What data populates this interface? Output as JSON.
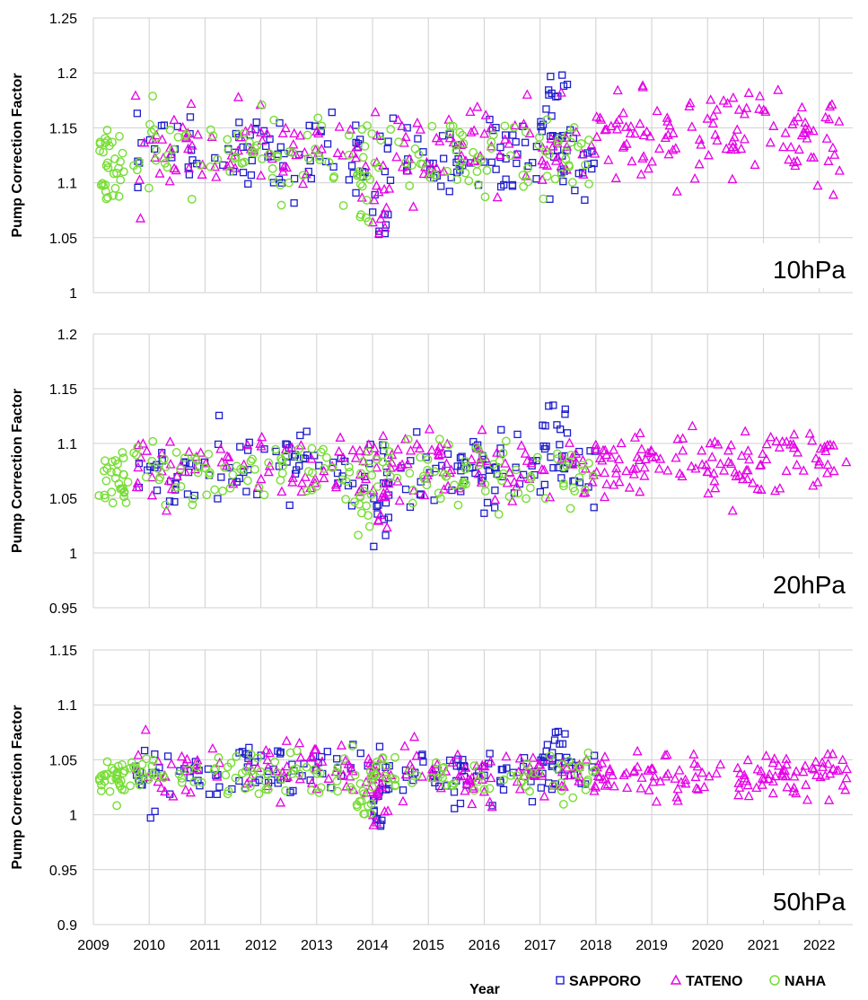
{
  "chart_data": [
    {
      "type": "scatter",
      "panel_label": "10hPa",
      "ylabel": "Pump Correction Factor",
      "ylim": [
        1.0,
        1.25
      ],
      "yticks": [
        "1",
        "1.05",
        "1.1",
        "1.15",
        "1.2",
        "1.25"
      ],
      "xlim": [
        2009,
        2022.6
      ],
      "grid": true,
      "series": [
        {
          "name": "SAPPORO",
          "segments": [
            [
              2009.75,
              2018.0,
              1.125,
              0.018,
              1.06,
              1.19
            ],
            [
              2014.0,
              2014.3,
              1.08,
              0.03,
              1.05,
              1.15
            ],
            [
              2017.0,
              2017.5,
              1.17,
              0.025,
              1.1,
              1.225
            ]
          ],
          "count": [
            150,
            12,
            20
          ]
        },
        {
          "name": "TATENO",
          "segments": [
            [
              2009.75,
              2018.0,
              1.13,
              0.018,
              1.05,
              1.19
            ],
            [
              2018.0,
              2022.5,
              1.14,
              0.02,
              1.085,
              1.2
            ],
            [
              2014.0,
              2014.3,
              1.08,
              0.025,
              1.05,
              1.12
            ]
          ],
          "count": [
            150,
            120,
            10
          ]
        },
        {
          "name": "NAHA",
          "segments": [
            [
              2009.1,
              2018.0,
              1.125,
              0.018,
              1.065,
              1.225
            ],
            [
              2009.1,
              2009.6,
              1.115,
              0.02,
              1.085,
              1.14
            ],
            [
              2013.7,
              2014.0,
              1.1,
              0.025,
              1.06,
              1.15
            ]
          ],
          "count": [
            160,
            20,
            10
          ]
        }
      ]
    },
    {
      "type": "scatter",
      "panel_label": "20hPa",
      "ylabel": "Pump Correction Factor",
      "ylim": [
        0.95,
        1.2
      ],
      "yticks": [
        "0.95",
        "1",
        "1.05",
        "1.1",
        "1.15",
        "1.2"
      ],
      "xlim": [
        2009,
        2022.6
      ],
      "grid": true,
      "series": [
        {
          "name": "SAPPORO",
          "segments": [
            [
              2009.75,
              2018.0,
              1.075,
              0.016,
              1.01,
              1.14
            ],
            [
              2014.0,
              2014.3,
              1.035,
              0.025,
              1.005,
              1.1
            ],
            [
              2017.0,
              2017.5,
              1.1,
              0.02,
              1.05,
              1.14
            ]
          ],
          "count": [
            150,
            12,
            20
          ]
        },
        {
          "name": "TATENO",
          "segments": [
            [
              2009.75,
              2018.0,
              1.078,
              0.016,
              1.0,
              1.12
            ],
            [
              2018.0,
              2022.5,
              1.08,
              0.016,
              1.035,
              1.12
            ],
            [
              2014.0,
              2014.3,
              1.035,
              0.02,
              1.0,
              1.08
            ]
          ],
          "count": [
            150,
            120,
            10
          ]
        },
        {
          "name": "NAHA",
          "segments": [
            [
              2009.1,
              2018.0,
              1.072,
              0.014,
              1.015,
              1.115
            ],
            [
              2009.1,
              2009.6,
              1.065,
              0.012,
              1.045,
              1.085
            ],
            [
              2013.7,
              2014.0,
              1.04,
              0.02,
              1.015,
              1.1
            ]
          ],
          "count": [
            160,
            20,
            10
          ]
        }
      ]
    },
    {
      "type": "scatter",
      "panel_label": "50hPa",
      "ylabel": "Pump Correction Factor",
      "ylim": [
        0.9,
        1.15
      ],
      "yticks": [
        "0.9",
        "0.95",
        "1",
        "1.05",
        "1.1",
        "1.15"
      ],
      "xlim": [
        2009,
        2022.6
      ],
      "xlabel": "Year",
      "xticks": [
        "2009",
        "2010",
        "2011",
        "2012",
        "2013",
        "2014",
        "2015",
        "2016",
        "2017",
        "2018",
        "2019",
        "2020",
        "2021",
        "2022"
      ],
      "grid": true,
      "series": [
        {
          "name": "SAPPORO",
          "segments": [
            [
              2009.75,
              2018.0,
              1.037,
              0.012,
              0.995,
              1.08
            ],
            [
              2014.0,
              2014.3,
              1.01,
              0.015,
              0.988,
              1.06
            ],
            [
              2017.0,
              2017.5,
              1.05,
              0.015,
              1.02,
              1.085
            ]
          ],
          "count": [
            150,
            12,
            20
          ]
        },
        {
          "name": "TATENO",
          "segments": [
            [
              2009.75,
              2018.0,
              1.038,
              0.012,
              0.995,
              1.085
            ],
            [
              2018.0,
              2022.5,
              1.038,
              0.01,
              1.01,
              1.065
            ],
            [
              2014.0,
              2014.3,
              1.008,
              0.012,
              0.99,
              1.04
            ]
          ],
          "count": [
            150,
            120,
            10
          ]
        },
        {
          "name": "NAHA",
          "segments": [
            [
              2009.1,
              2018.0,
              1.035,
              0.011,
              0.99,
              1.082
            ],
            [
              2009.1,
              2009.6,
              1.035,
              0.008,
              1.02,
              1.05
            ],
            [
              2013.7,
              2014.0,
              1.01,
              0.012,
              0.99,
              1.04
            ]
          ],
          "count": [
            160,
            20,
            10
          ]
        }
      ]
    }
  ],
  "legend": {
    "placement": "bottom-right",
    "entries": [
      {
        "name": "SAPPORO",
        "marker": "square",
        "color": "#1f1fcc"
      },
      {
        "name": "TATENO",
        "marker": "triangle",
        "color": "#e600e6"
      },
      {
        "name": "NAHA",
        "marker": "circle",
        "color": "#77dd33"
      }
    ]
  },
  "colors": {
    "SAPPORO": "#1f1fcc",
    "TATENO": "#e600e6",
    "NAHA": "#77dd33",
    "grid": "#d0d0d0"
  }
}
